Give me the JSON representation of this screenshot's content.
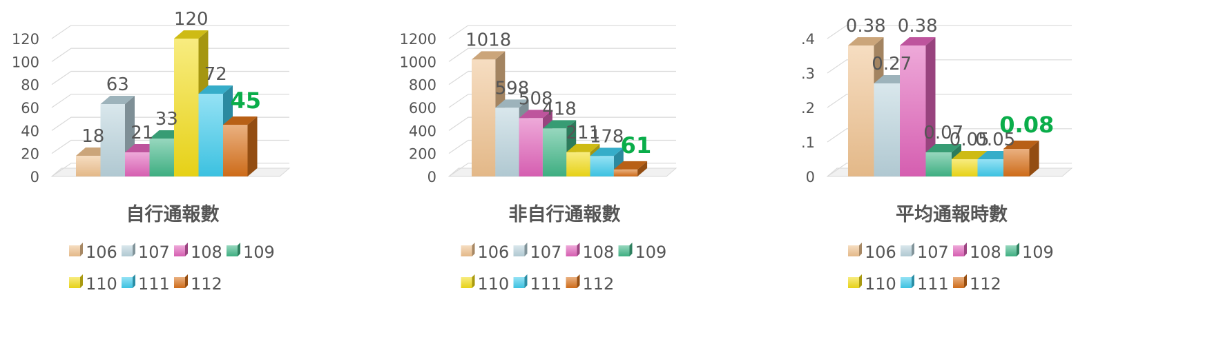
{
  "colors": {
    "106": "#efc28f",
    "107": "#b9d3dc",
    "108": "#e063b9",
    "109": "#41b788",
    "110": "#f2dc18",
    "111": "#3fcbec",
    "112": "#d8711a",
    "highlight": "#0aad4a",
    "text": "#555555",
    "grid": "#d9d9d9"
  },
  "chart_data": [
    {
      "type": "bar",
      "title": "自行通報數",
      "categories": [
        "106",
        "107",
        "108",
        "109",
        "110",
        "111",
        "112"
      ],
      "values": [
        18,
        63,
        21,
        33,
        120,
        72,
        45
      ],
      "value_labels": [
        "18",
        "63",
        "21",
        "33",
        "120",
        "72",
        "45"
      ],
      "highlight_last": true,
      "ylim": [
        0,
        120
      ],
      "yticks": [
        "0",
        "20",
        "40",
        "60",
        "80",
        "100",
        "120"
      ],
      "grid": true,
      "legend_position": "bottom",
      "legend": [
        "106",
        "107",
        "108",
        "109",
        "110",
        "111",
        "112"
      ]
    },
    {
      "type": "bar",
      "title": "非自行通報數",
      "categories": [
        "106",
        "107",
        "108",
        "109",
        "110",
        "111",
        "112"
      ],
      "values": [
        1018,
        598,
        508,
        418,
        211,
        178,
        61
      ],
      "value_labels": [
        "1018",
        "598",
        "508",
        "418",
        "211",
        "178",
        "61"
      ],
      "highlight_last": true,
      "ylim": [
        0,
        1200
      ],
      "yticks": [
        "0",
        "200",
        "400",
        "600",
        "800",
        "1000",
        "1200"
      ],
      "grid": true,
      "legend_position": "bottom",
      "legend": [
        "106",
        "107",
        "108",
        "109",
        "110",
        "111",
        "112"
      ]
    },
    {
      "type": "bar",
      "title": "平均通報時數",
      "categories": [
        "106",
        "107",
        "108",
        "109",
        "110",
        "111",
        "112"
      ],
      "values": [
        0.38,
        0.27,
        0.38,
        0.07,
        0.05,
        0.05,
        0.08
      ],
      "value_labels": [
        "0.38",
        "0.27",
        "0.38",
        "0.07",
        "0.05",
        "0.05",
        "0.08"
      ],
      "highlight_last": true,
      "ylim": [
        0,
        0.4
      ],
      "yticks": [
        "0",
        "0.1",
        "0.2",
        "0.3",
        "0.4"
      ],
      "grid": true,
      "legend_position": "bottom",
      "legend": [
        "106",
        "107",
        "108",
        "109",
        "110",
        "111",
        "112"
      ]
    }
  ]
}
